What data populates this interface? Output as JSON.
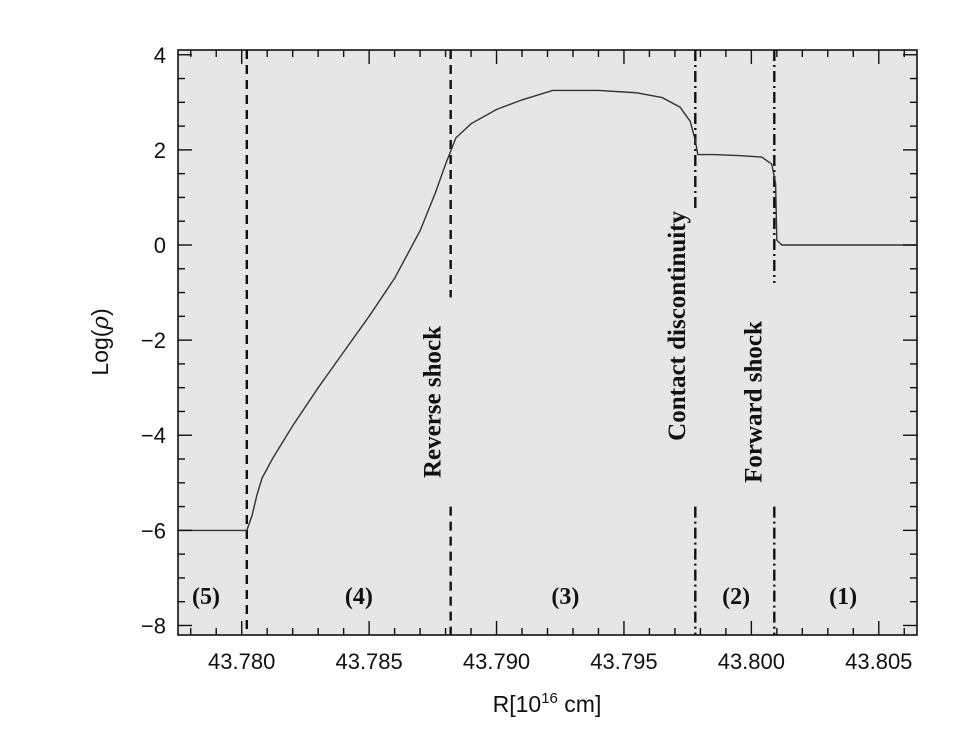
{
  "chart_data": {
    "type": "line",
    "xlabel": "R[10",
    "xlabel_sup": "16",
    "xlabel_unit": " cm]",
    "ylabel_prefix": "Log(",
    "ylabel_symbol": "ρ",
    "ylabel_suffix": ")",
    "xlim": [
      43.7775,
      43.8065
    ],
    "ylim": [
      -8.2,
      4.1
    ],
    "xticks": [
      43.78,
      43.785,
      43.79,
      43.795,
      43.8,
      43.805
    ],
    "xtick_labels": [
      "43.780",
      "43.785",
      "43.790",
      "43.795",
      "43.800",
      "43.805"
    ],
    "yticks": [
      -8,
      -6,
      -4,
      -2,
      0,
      2,
      4
    ],
    "ytick_labels": [
      "−8",
      "−6",
      "−4",
      "−2",
      "0",
      "2",
      "4"
    ],
    "background": "#e6e6e6",
    "line_color": "#333333",
    "grid": false,
    "series": [
      {
        "x": [
          43.7775,
          43.7802,
          43.7804,
          43.7806,
          43.7808,
          43.7812,
          43.782,
          43.783,
          43.784,
          43.785,
          43.786,
          43.787,
          43.7876,
          43.788,
          43.7884,
          43.789,
          43.79,
          43.791,
          43.7922,
          43.794,
          43.7955,
          43.7965,
          43.7972,
          43.7976,
          43.7978,
          43.7979,
          43.7985,
          43.7995,
          43.8004,
          43.8008,
          43.80095,
          43.801,
          43.8012,
          43.802,
          43.804,
          43.8065
        ],
        "y": [
          -6.0,
          -6.0,
          -5.7,
          -5.25,
          -4.9,
          -4.5,
          -3.8,
          -3.0,
          -2.25,
          -1.5,
          -0.7,
          0.3,
          1.1,
          1.7,
          2.25,
          2.55,
          2.85,
          3.05,
          3.25,
          3.25,
          3.2,
          3.1,
          2.9,
          2.6,
          2.2,
          1.9,
          1.9,
          1.88,
          1.85,
          1.7,
          1.3,
          0.1,
          0.0,
          0.0,
          0.0,
          0.0
        ]
      }
    ],
    "vlines": [
      {
        "x": 43.7802,
        "style": "dashed",
        "y_from": -8.2,
        "y_to": 4.1
      },
      {
        "x": 43.7882,
        "style": "dashed",
        "y_from": -1.1,
        "y_to": 4.1
      },
      {
        "x": 43.7882,
        "style": "dashed",
        "y_from": -8.2,
        "y_to": -5.5
      },
      {
        "x": 43.7978,
        "style": "dashdot",
        "y_from": 0.7,
        "y_to": 4.1
      },
      {
        "x": 43.7978,
        "style": "dashdot",
        "y_from": -8.2,
        "y_to": -5.5
      },
      {
        "x": 43.8009,
        "style": "dashdot",
        "y_from": -0.8,
        "y_to": 4.1
      },
      {
        "x": 43.8009,
        "style": "dashdot",
        "y_from": -8.2,
        "y_to": -5.5
      }
    ],
    "annotations": [
      {
        "text": "Reverse shock",
        "x": 43.7878,
        "y": -3.3
      },
      {
        "text": "Contact discontinuity",
        "x": 43.7974,
        "y": -1.7
      },
      {
        "text": "Forward shock",
        "x": 43.8004,
        "y": -3.3
      }
    ],
    "region_labels": [
      {
        "text": "(5)",
        "x": 43.7786
      },
      {
        "text": "(4)",
        "x": 43.7846
      },
      {
        "text": "(3)",
        "x": 43.7927
      },
      {
        "text": "(2)",
        "x": 43.7994
      },
      {
        "text": "(1)",
        "x": 43.8036
      }
    ],
    "region_label_y": -7.55
  }
}
